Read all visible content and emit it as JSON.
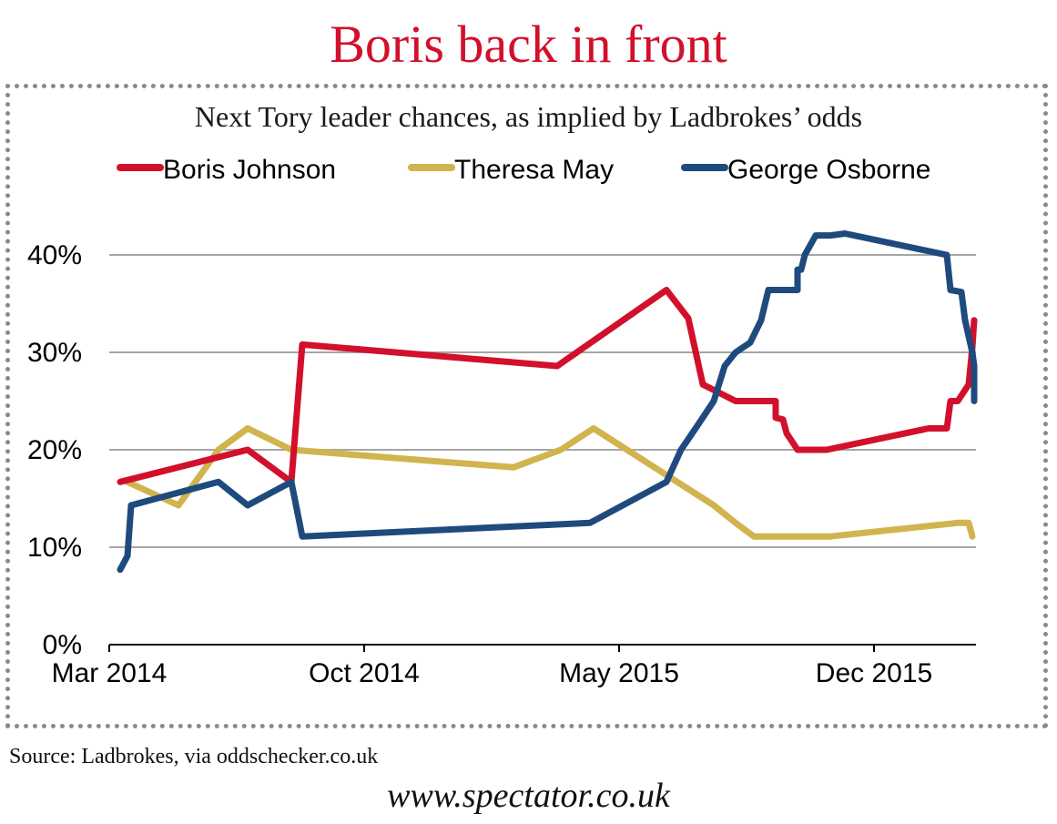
{
  "headline": "Boris back in front",
  "source": "Source: Ladbrokes, via oddschecker.co.uk",
  "website": "www.spectator.co.uk",
  "colors": {
    "headline": "#d2102c",
    "grid": "#a6a6a6",
    "axis": "#000000"
  },
  "chart_data": {
    "type": "line",
    "title": "Next Tory leader chances, as implied by Ladbrokes’ odds",
    "xlabel": "",
    "ylabel": "",
    "x_unit": "months since Mar 2014",
    "xlim": [
      0,
      23.8
    ],
    "ylim": [
      0,
      40
    ],
    "yticks": [
      0,
      10,
      20,
      30,
      40
    ],
    "ytick_labels": [
      "0%",
      "10%",
      "20%",
      "30%",
      "40%"
    ],
    "xticks": [
      0,
      7,
      14,
      21
    ],
    "xtick_labels": [
      "Mar 2014",
      "Oct 2014",
      "May 2015",
      "Dec 2015"
    ],
    "grid": true,
    "legend_position": "top",
    "series": [
      {
        "name": "Boris Johnson",
        "color": "#d2102c",
        "x": [
          0.3,
          3.8,
          5.0,
          5.3,
          12.3,
          15.3,
          15.9,
          16.3,
          17.2,
          18.3,
          18.3,
          18.5,
          18.6,
          18.9,
          19.7,
          22.5,
          23.0,
          23.1,
          23.3,
          23.6,
          23.7,
          23.75
        ],
        "y": [
          16.7,
          20.0,
          16.7,
          30.8,
          28.6,
          36.4,
          33.5,
          26.7,
          25.0,
          25.0,
          23.3,
          23.1,
          21.7,
          20.0,
          20.0,
          22.2,
          22.2,
          25.0,
          25.0,
          26.7,
          30.5,
          33.3
        ]
      },
      {
        "name": "Theresa May",
        "color": "#d1b44e",
        "x": [
          0.5,
          1.9,
          3.0,
          3.8,
          5.0,
          11.1,
          12.4,
          13.3,
          16.6,
          17.2,
          17.7,
          19.8,
          23.3,
          23.6,
          23.7
        ],
        "y": [
          16.7,
          14.3,
          20.0,
          22.2,
          20.0,
          18.2,
          20.0,
          22.2,
          14.3,
          12.5,
          11.1,
          11.1,
          12.5,
          12.5,
          11.1
        ]
      },
      {
        "name": "George Osborne",
        "color": "#1f4a7d",
        "x": [
          0.3,
          0.5,
          0.6,
          3.0,
          3.8,
          5.0,
          5.3,
          13.2,
          15.3,
          15.7,
          16.1,
          16.6,
          16.9,
          17.2,
          17.6,
          17.9,
          18.1,
          18.9,
          18.9,
          19.0,
          19.1,
          19.4,
          19.8,
          20.2,
          23.0,
          23.1,
          23.4,
          23.5,
          23.5,
          23.7,
          23.75,
          23.75
        ],
        "y": [
          7.7,
          9.1,
          14.3,
          16.7,
          14.3,
          16.7,
          11.1,
          12.5,
          16.7,
          20.0,
          22.2,
          25.0,
          28.6,
          30.0,
          31.0,
          33.3,
          36.4,
          36.4,
          38.5,
          38.5,
          40.0,
          42.0,
          42.0,
          42.2,
          40.0,
          36.4,
          36.2,
          33.3,
          33.3,
          30.0,
          28.6,
          25.0
        ]
      }
    ]
  }
}
